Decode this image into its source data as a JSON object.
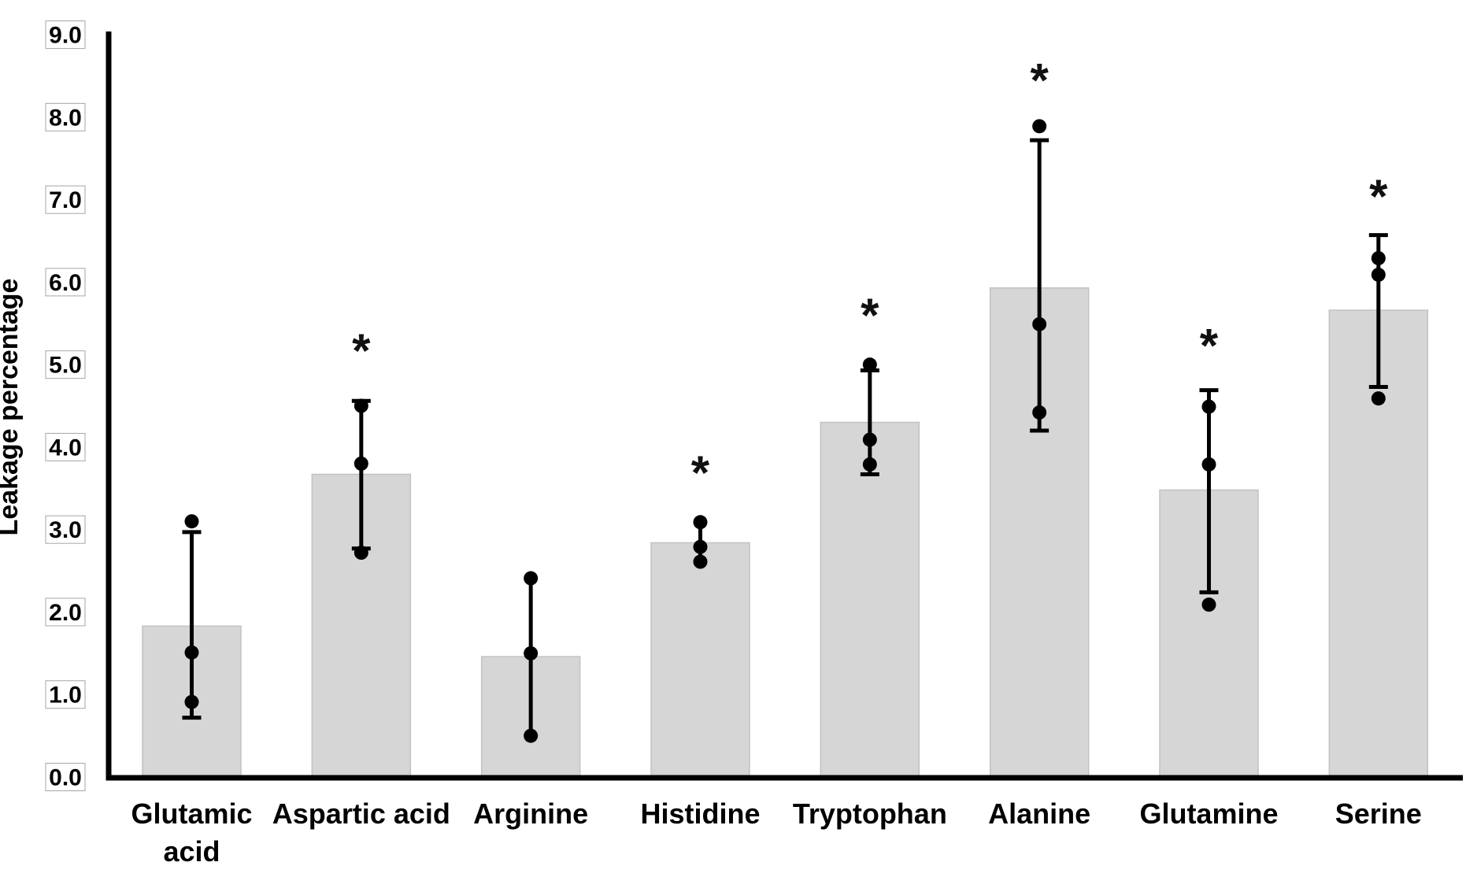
{
  "figure": {
    "background": "#ffffff"
  },
  "chart_data": {
    "type": "bar",
    "title": "",
    "ylabel": "Leakage percentage",
    "xlabel": "",
    "ylim": [
      0.0,
      9.0
    ],
    "ytick_labels": [
      "0.0",
      "1.0",
      "2.0",
      "3.0",
      "4.0",
      "5.0",
      "6.0",
      "7.0",
      "8.0",
      "9.0"
    ],
    "grid": false,
    "legend": null,
    "significance_symbol": "*",
    "colors": {
      "bar_fill": "#d6d6d6",
      "bar_border": "#c2c2c2",
      "marker": "#000000",
      "axis": "#000000",
      "tick_box_border": "#a6a6a6"
    },
    "categories": [
      "Glutamic acid",
      "Aspartic acid",
      "Arginine",
      "Histidine",
      "Tryptophan",
      "Alanine",
      "Glutamine",
      "Serine"
    ],
    "series": [
      {
        "name": "Mean leakage percentage",
        "values": [
          1.83,
          3.67,
          1.46,
          2.84,
          4.3,
          5.93,
          3.48,
          5.66
        ]
      }
    ],
    "bars": [
      {
        "category_lines": [
          "Glutamic",
          "acid"
        ],
        "mean": 1.83,
        "err_low": 0.72,
        "err_high": 2.97,
        "points": [
          3.1,
          1.51,
          0.91
        ],
        "caps": true,
        "significant": false,
        "star_y": null
      },
      {
        "category_lines": [
          "Aspartic acid"
        ],
        "mean": 3.67,
        "err_low": 2.77,
        "err_high": 4.56,
        "points": [
          4.5,
          3.8,
          2.72
        ],
        "caps": true,
        "significant": true,
        "star_y": 5.26
      },
      {
        "category_lines": [
          "Arginine"
        ],
        "mean": 1.46,
        "err_low": 0.5,
        "err_high": 2.41,
        "points": [
          2.41,
          1.5,
          0.5
        ],
        "caps": false,
        "significant": false,
        "star_y": null
      },
      {
        "category_lines": [
          "Histidine"
        ],
        "mean": 2.84,
        "err_low": 2.61,
        "err_high": 3.09,
        "points": [
          3.09,
          2.79,
          2.61
        ],
        "caps": false,
        "significant": true,
        "star_y": 3.78
      },
      {
        "category_lines": [
          "Tryptophan"
        ],
        "mean": 4.3,
        "err_low": 3.67,
        "err_high": 4.93,
        "points": [
          5.0,
          4.09,
          3.79
        ],
        "caps": true,
        "significant": true,
        "star_y": 5.69
      },
      {
        "category_lines": [
          "Alanine"
        ],
        "mean": 5.93,
        "err_low": 4.2,
        "err_high": 7.72,
        "points": [
          7.89,
          5.49,
          4.42
        ],
        "caps": true,
        "significant": true,
        "star_y": 8.54
      },
      {
        "category_lines": [
          "Glutamine"
        ],
        "mean": 3.48,
        "err_low": 2.24,
        "err_high": 4.69,
        "points": [
          4.49,
          3.79,
          2.09
        ],
        "caps": true,
        "significant": true,
        "star_y": 5.32
      },
      {
        "category_lines": [
          "Serine"
        ],
        "mean": 5.66,
        "err_low": 4.73,
        "err_high": 6.57,
        "points": [
          6.29,
          6.09,
          4.59
        ],
        "caps": true,
        "significant": true,
        "star_y": 7.13
      }
    ]
  }
}
